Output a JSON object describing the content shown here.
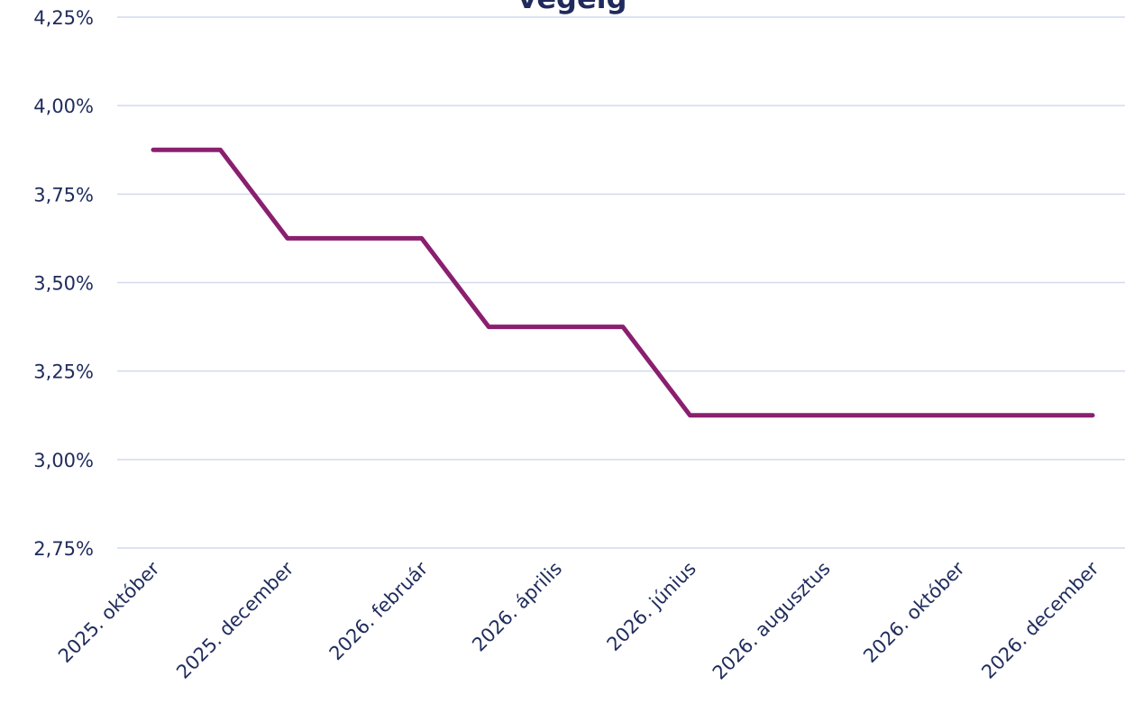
{
  "chart_data": {
    "type": "line",
    "title": "végéig",
    "categories": [
      "2025. október",
      null,
      "2025. december",
      null,
      "2026. február",
      null,
      "2026. április",
      null,
      "2026. június",
      null,
      "2026. augusztus",
      null,
      "2026. október",
      null,
      "2026. december"
    ],
    "series": [
      {
        "color": "#8a1f6f",
        "values": [
          3.875,
          3.875,
          3.625,
          3.625,
          3.625,
          3.375,
          3.375,
          3.375,
          3.125,
          3.125,
          3.125,
          3.125,
          3.125,
          3.125,
          3.125
        ]
      }
    ],
    "ylim": [
      2.75,
      4.25
    ],
    "yticks": [
      {
        "value": 2.75,
        "label": "2,75%"
      },
      {
        "value": 3.0,
        "label": "3,00%"
      },
      {
        "value": 3.25,
        "label": "3,25%"
      },
      {
        "value": 3.5,
        "label": "3,50%"
      },
      {
        "value": 3.75,
        "label": "3,75%"
      },
      {
        "value": 4.0,
        "label": "4,00%"
      },
      {
        "value": 4.25,
        "label": "4,25%"
      }
    ],
    "grid": true
  }
}
